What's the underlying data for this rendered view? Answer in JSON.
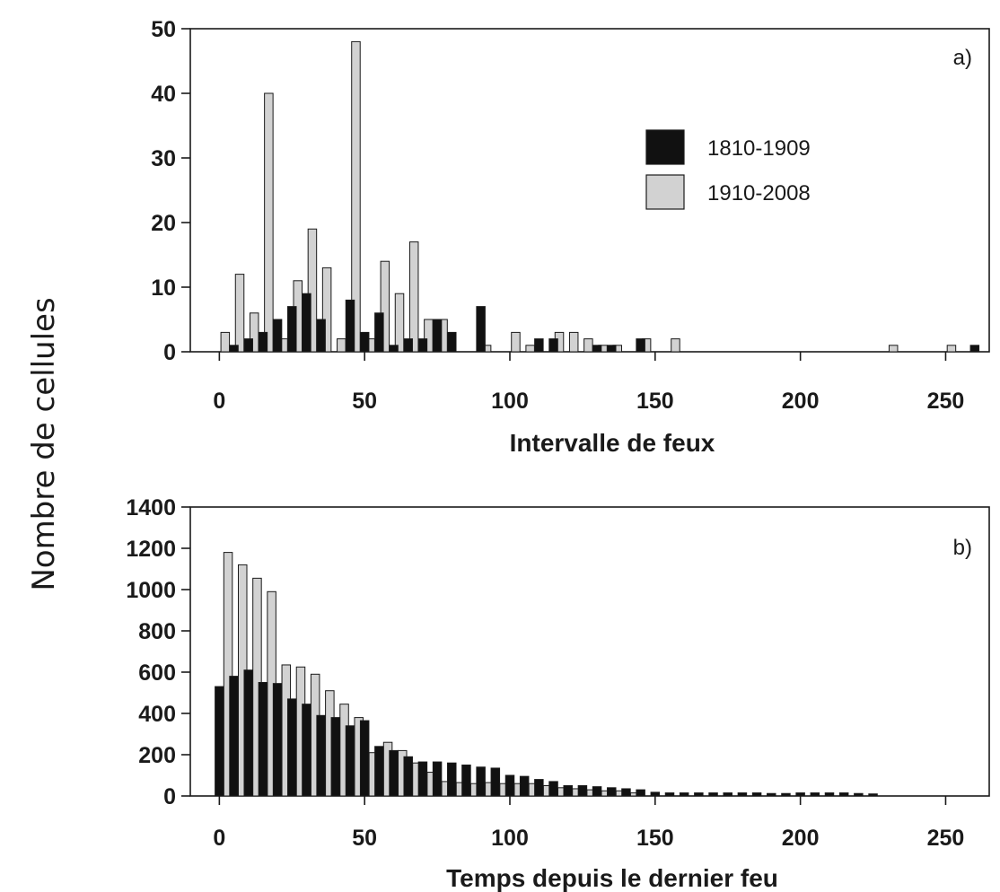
{
  "y_axis_label": "Nombre de cellules",
  "colors": {
    "series_1810_1909": "#111111",
    "series_1910_2008": "#d2d2d2",
    "bar_stroke": "#1a1a1a",
    "axis": "#1a1a1a"
  },
  "chart_data": [
    {
      "type": "bar",
      "panel_label": "a)",
      "xlabel": "Intervalle de feux",
      "xlim": [
        -10,
        265
      ],
      "ylim": [
        0,
        50
      ],
      "xticks": [
        0,
        50,
        100,
        150,
        200,
        250
      ],
      "yticks": [
        0,
        10,
        20,
        30,
        40,
        50
      ],
      "grid": false,
      "legend_position": "top-right",
      "series": [
        {
          "name": "1810-1909",
          "x": [
            5,
            10,
            15,
            20,
            25,
            30,
            35,
            45,
            50,
            55,
            60,
            65,
            70,
            75,
            80,
            90,
            110,
            115,
            130,
            135,
            145,
            260
          ],
          "values": [
            1,
            2,
            3,
            5,
            7,
            9,
            5,
            8,
            3,
            6,
            1,
            2,
            2,
            5,
            3,
            7,
            2,
            2,
            1,
            1,
            2,
            1
          ]
        },
        {
          "name": "1910-2008",
          "x": [
            2,
            7,
            12,
            17,
            22,
            27,
            32,
            37,
            42,
            47,
            52,
            57,
            62,
            67,
            72,
            77,
            92,
            102,
            107,
            117,
            122,
            127,
            132,
            137,
            147,
            157,
            232,
            252
          ],
          "values": [
            3,
            12,
            6,
            40,
            2,
            11,
            19,
            13,
            2,
            48,
            2,
            14,
            9,
            17,
            5,
            5,
            1,
            3,
            1,
            3,
            3,
            2,
            1,
            1,
            2,
            2,
            1,
            1
          ]
        }
      ]
    },
    {
      "type": "bar",
      "panel_label": "b)",
      "xlabel": "Temps depuis le dernier feu",
      "xlim": [
        -10,
        265
      ],
      "ylim": [
        0,
        1400
      ],
      "xticks": [
        0,
        50,
        100,
        150,
        200,
        250
      ],
      "yticks": [
        0,
        200,
        400,
        600,
        800,
        1000,
        1200,
        1400
      ],
      "grid": false,
      "series": [
        {
          "name": "1810-1909",
          "x": [
            0,
            5,
            10,
            15,
            20,
            25,
            30,
            35,
            40,
            45,
            50,
            55,
            60,
            65,
            70,
            75,
            80,
            85,
            90,
            95,
            100,
            105,
            110,
            115,
            120,
            125,
            130,
            135,
            140,
            145,
            150,
            155,
            160,
            165,
            170,
            175,
            180,
            185,
            190,
            195,
            200,
            205,
            210,
            215,
            220,
            225
          ],
          "values": [
            530,
            580,
            610,
            550,
            545,
            470,
            445,
            390,
            380,
            340,
            365,
            240,
            220,
            190,
            165,
            165,
            160,
            150,
            140,
            135,
            100,
            95,
            80,
            70,
            50,
            50,
            45,
            40,
            35,
            30,
            18,
            15,
            15,
            15,
            15,
            15,
            15,
            15,
            12,
            12,
            15,
            15,
            15,
            15,
            12,
            10
          ]
        },
        {
          "name": "1910-2008",
          "x": [
            3,
            8,
            13,
            18,
            23,
            28,
            33,
            38,
            43,
            48,
            53,
            58,
            63,
            68,
            73,
            78,
            83,
            88,
            93,
            98,
            103,
            108,
            113,
            118,
            123,
            128,
            133,
            138,
            143
          ],
          "values": [
            1180,
            1120,
            1055,
            990,
            635,
            625,
            590,
            510,
            445,
            380,
            210,
            260,
            220,
            160,
            115,
            70,
            65,
            60,
            65,
            60,
            60,
            60,
            50,
            40,
            35,
            30,
            25,
            25,
            15
          ]
        }
      ]
    }
  ],
  "legend": [
    {
      "label": "1810-1909",
      "series": "series_1810_1909"
    },
    {
      "label": "1910-2008",
      "series": "series_1910_2008"
    }
  ]
}
